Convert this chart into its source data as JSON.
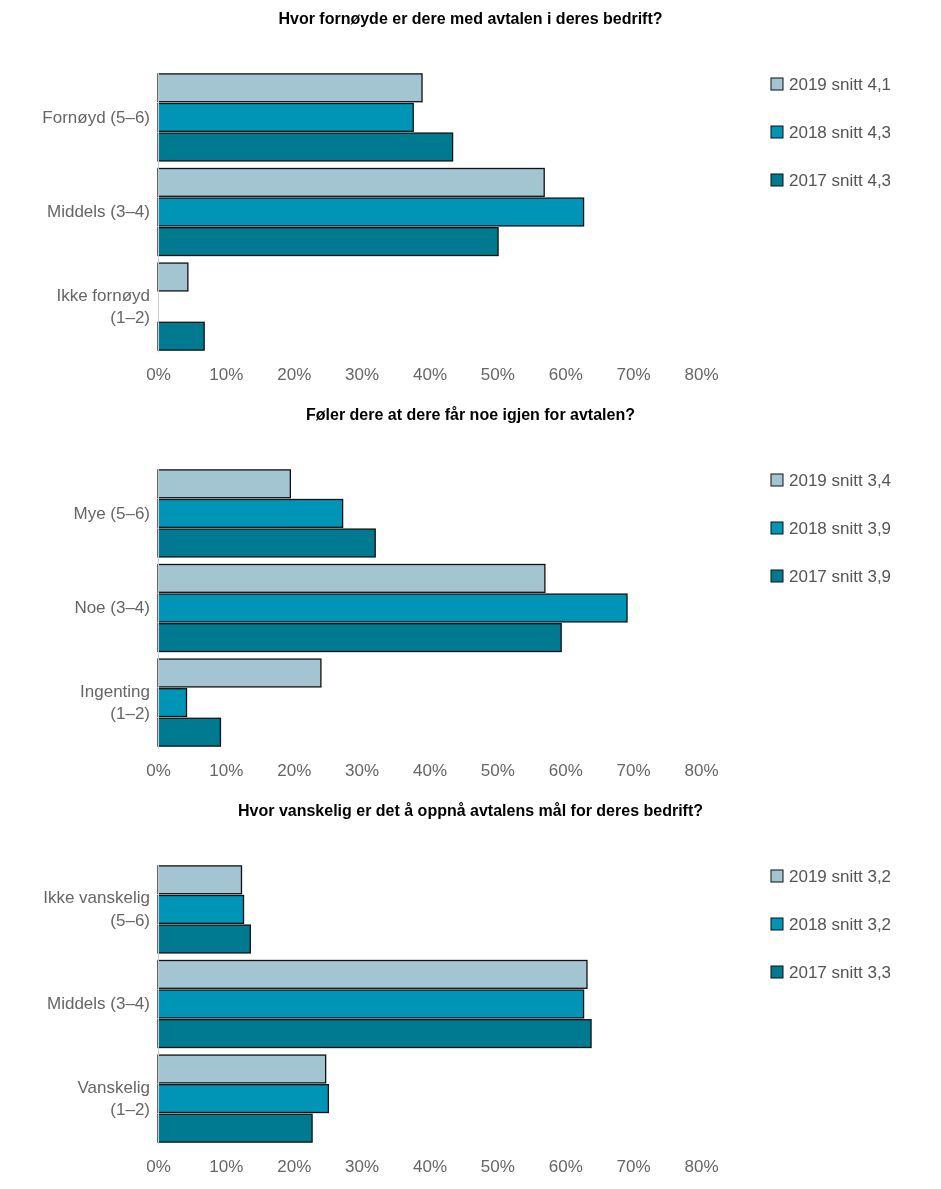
{
  "chart_data": [
    {
      "type": "bar",
      "orientation": "horizontal",
      "title": "Hvor fornøyde er dere med avtalen i deres bedrift?",
      "categories": [
        "Fornøyd (5–6)",
        "Middels (3–4)",
        "Ikke fornøyd (1–2)"
      ],
      "series": [
        {
          "name": "2019 snitt 4,1",
          "color": "#a3c4d1",
          "values": [
            38.9,
            56.9,
            4.4
          ]
        },
        {
          "name": "2018 snitt 4,3",
          "color": "#0095b6",
          "values": [
            37.6,
            62.7,
            0
          ]
        },
        {
          "name": "2017 snitt 4,3",
          "color": "#007a91",
          "values": [
            43.4,
            50.1,
            6.8
          ]
        }
      ],
      "xlim": [
        0,
        80
      ],
      "xticks": [
        {
          "value": 0,
          "label": "0%"
        },
        {
          "value": 10,
          "label": "10%"
        },
        {
          "value": 20,
          "label": "20%"
        },
        {
          "value": 30,
          "label": "30%"
        },
        {
          "value": 40,
          "label": "40%"
        },
        {
          "value": 50,
          "label": "50%"
        },
        {
          "value": 60,
          "label": "60%"
        },
        {
          "value": 70,
          "label": "70%"
        },
        {
          "value": 80,
          "label": "80%"
        }
      ],
      "grid": false,
      "legend": "top right"
    },
    {
      "type": "bar",
      "orientation": "horizontal",
      "title": "Føler dere at dere får noe igjen for avtalen?",
      "categories": [
        "Mye (5–6)",
        "Noe (3–4)",
        "Ingenting (1–2)"
      ],
      "series": [
        {
          "name": "2019 snitt 3,4",
          "color": "#a3c4d1",
          "values": [
            19.5,
            57.0,
            24.0
          ]
        },
        {
          "name": "2018 snitt 3,9",
          "color": "#0095b6",
          "values": [
            27.2,
            69.1,
            4.2
          ]
        },
        {
          "name": "2017 snitt 3,9",
          "color": "#007a91",
          "values": [
            32.0,
            59.4,
            9.2
          ]
        }
      ],
      "xlim": [
        0,
        80
      ],
      "xticks": [
        {
          "value": 0,
          "label": "0%"
        },
        {
          "value": 10,
          "label": "10%"
        },
        {
          "value": 20,
          "label": "20%"
        },
        {
          "value": 30,
          "label": "30%"
        },
        {
          "value": 40,
          "label": "40%"
        },
        {
          "value": 50,
          "label": "50%"
        },
        {
          "value": 60,
          "label": "60%"
        },
        {
          "value": 70,
          "label": "70%"
        },
        {
          "value": 80,
          "label": "80%"
        }
      ],
      "grid": false,
      "legend": "top right"
    },
    {
      "type": "bar",
      "orientation": "horizontal",
      "title": "Hvor vanskelig er det å oppnå avtalens mål for deres bedrift?",
      "categories": [
        "Ikke vanskelig (5–6)",
        "Middels (3–4)",
        "Vanskelig (1–2)"
      ],
      "series": [
        {
          "name": "2019 snitt 3,2",
          "color": "#a3c4d1",
          "values": [
            12.3,
            63.2,
            24.7
          ]
        },
        {
          "name": "2018 snitt 3,2",
          "color": "#0095b6",
          "values": [
            12.6,
            62.7,
            25.1
          ]
        },
        {
          "name": "2017 snitt 3,3",
          "color": "#007a91",
          "values": [
            13.6,
            63.8,
            22.7
          ]
        }
      ],
      "xlim": [
        0,
        80
      ],
      "xticks": [
        {
          "value": 0,
          "label": "0%"
        },
        {
          "value": 10,
          "label": "10%"
        },
        {
          "value": 20,
          "label": "20%"
        },
        {
          "value": 30,
          "label": "30%"
        },
        {
          "value": 40,
          "label": "40%"
        },
        {
          "value": 50,
          "label": "50%"
        },
        {
          "value": 60,
          "label": "60%"
        },
        {
          "value": 70,
          "label": "70%"
        },
        {
          "value": 80,
          "label": "80%"
        }
      ],
      "grid": false,
      "legend": "top right"
    }
  ]
}
